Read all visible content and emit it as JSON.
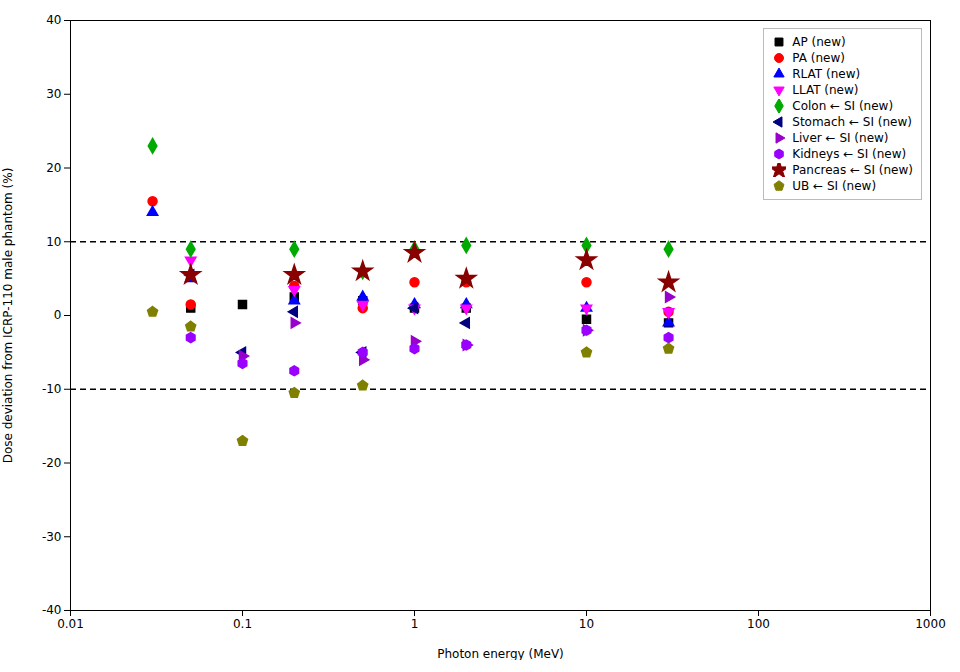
{
  "chart_data": {
    "type": "scatter",
    "xlabel": "Photon energy (MeV)",
    "ylabel": "Dose deviation from ICRP-110 male phantom (%)",
    "log": "x",
    "grid": false,
    "legend": "upper right",
    "xlim": [
      0.01,
      1000
    ],
    "ylim": [
      -40,
      40
    ],
    "xticks": [
      0.01,
      0.1,
      1,
      10,
      100,
      1000
    ],
    "yticks": [
      -40,
      -30,
      -20,
      -10,
      0,
      10,
      20,
      30,
      40
    ],
    "hlines": [
      10,
      -10
    ],
    "series": [
      {
        "name": "AP (new)",
        "color": "#000000",
        "marker": "square",
        "x": [
          0.05,
          0.1,
          0.2,
          0.5,
          1.0,
          2.0,
          10.0,
          30.0
        ],
        "values": [
          1.0,
          1.5,
          2.5,
          2.0,
          1.0,
          1.0,
          -0.5,
          -1.0
        ]
      },
      {
        "name": "PA (new)",
        "color": "#ff0000",
        "marker": "circle",
        "x": [
          0.03,
          0.05,
          0.2,
          0.5,
          1.0,
          2.0,
          10.0,
          30.0
        ],
        "values": [
          15.5,
          1.5,
          4.0,
          1.0,
          4.5,
          4.5,
          4.5,
          0.5
        ]
      },
      {
        "name": "RLAT (new)",
        "color": "#0000ff",
        "marker": "triangle-up",
        "x": [
          0.03,
          0.05,
          0.2,
          0.5,
          1.0,
          2.0,
          10.0,
          30.0
        ],
        "values": [
          14.0,
          5.0,
          2.0,
          2.5,
          1.5,
          1.5,
          1.0,
          -1.0
        ]
      },
      {
        "name": "LLAT (new)",
        "color": "#ff00ff",
        "marker": "triangle-down",
        "x": [
          0.05,
          0.2,
          0.5,
          1.0,
          2.0,
          10.0,
          30.0
        ],
        "values": [
          7.5,
          3.5,
          1.5,
          1.0,
          1.0,
          1.0,
          0.5
        ]
      },
      {
        "name": "Colon ← SI (new)",
        "color": "#00aa00",
        "marker": "diamond",
        "x": [
          0.03,
          0.05,
          0.2,
          0.5,
          1.0,
          2.0,
          10.0,
          30.0
        ],
        "values": [
          23.0,
          9.0,
          9.0,
          6.0,
          9.0,
          9.5,
          9.5,
          9.0
        ]
      },
      {
        "name": "Stomach ← SI (new)",
        "color": "#000080",
        "marker": "triangle-left",
        "x": [
          0.05,
          0.1,
          0.2,
          0.5,
          1.0,
          2.0
        ],
        "values": [
          5.5,
          -5.0,
          0.5,
          -5.0,
          1.0,
          -1.0
        ]
      },
      {
        "name": "Liver ← SI (new)",
        "color": "#9900cc",
        "marker": "triangle-right",
        "x": [
          0.1,
          0.2,
          0.5,
          1.0,
          2.0,
          10.0,
          30.0
        ],
        "values": [
          -5.5,
          -1.0,
          -6.0,
          -3.5,
          -4.0,
          -2.0,
          2.5
        ]
      },
      {
        "name": "Kidneys ← SI (new)",
        "color": "#9900ff",
        "marker": "hexagon",
        "x": [
          0.05,
          0.1,
          0.2,
          0.5,
          1.0,
          2.0,
          10.0,
          30.0
        ],
        "values": [
          -3.0,
          -6.5,
          -7.5,
          -5.0,
          -4.5,
          -4.0,
          -2.0,
          -3.0
        ]
      },
      {
        "name": "Pancreas ← SI (new)",
        "color": "#880000",
        "marker": "star",
        "x": [
          0.05,
          0.2,
          0.5,
          1.0,
          2.0,
          10.0,
          30.0
        ],
        "values": [
          5.5,
          5.5,
          6.0,
          8.5,
          5.0,
          7.5,
          4.5
        ]
      },
      {
        "name": "UB ← SI (new)",
        "color": "#808000",
        "marker": "pentagon",
        "x": [
          0.03,
          0.05,
          0.1,
          0.2,
          0.5,
          10.0,
          30.0
        ],
        "values": [
          0.5,
          -1.5,
          -17.0,
          -10.5,
          -9.5,
          -5.0,
          -4.5
        ]
      }
    ]
  }
}
